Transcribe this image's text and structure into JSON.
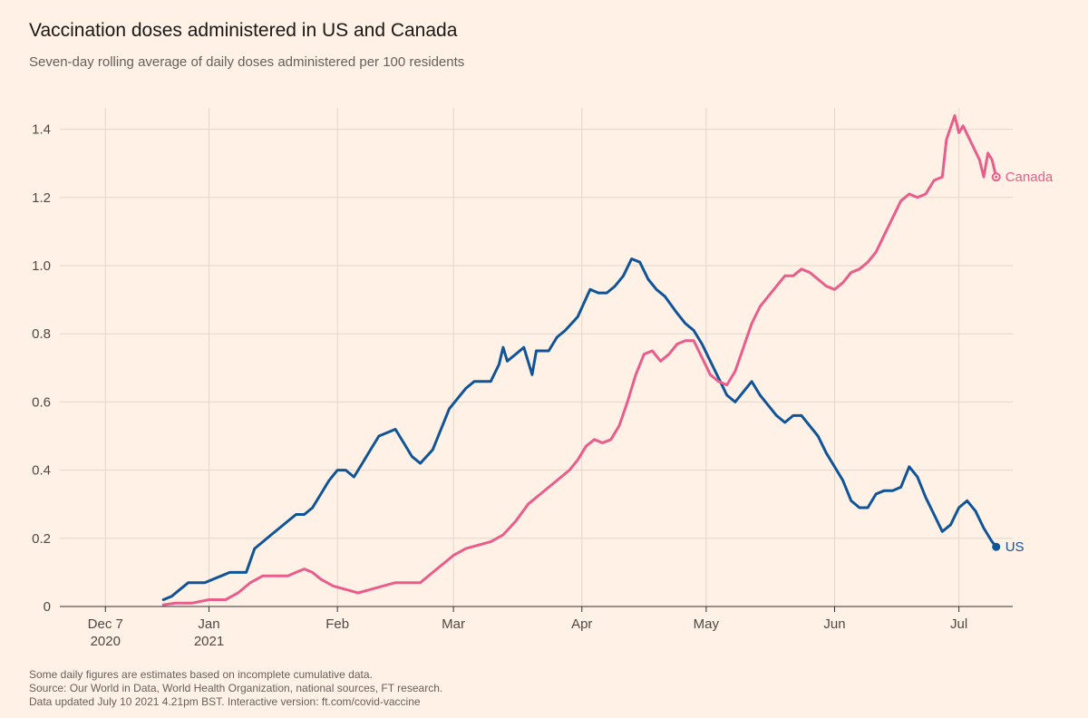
{
  "title": "Vaccination doses administered in US and Canada",
  "subtitle": "Seven-day rolling average of daily doses administered per 100 residents",
  "footnotes": [
    "Some daily figures are estimates based on incomplete cumulative data.",
    "Source: Our World in Data, World Health Organization, national sources, FT research.",
    "Data updated July 10 2021 4.21pm BST. Interactive version: ft.com/covid-vaccine"
  ],
  "colors": {
    "background": "#FFF1E5",
    "us": "#0F5499",
    "canada": "#E95D8C",
    "grid": "#E2D6CB",
    "axis": "#33302e"
  },
  "chart_data": {
    "type": "line",
    "title": "Vaccination doses administered in US and Canada",
    "subtitle": "Seven-day rolling average of daily doses administered per 100 residents",
    "xlabel": "",
    "ylabel": "",
    "x_axis": {
      "type": "date",
      "range": [
        "2020-11-26",
        "2021-07-14"
      ],
      "ticks": [
        {
          "date": "2020-12-07",
          "label": "Dec 7",
          "sublabel": "2020"
        },
        {
          "date": "2021-01-01",
          "label": "Jan",
          "sublabel": "2021"
        },
        {
          "date": "2021-02-01",
          "label": "Feb",
          "sublabel": ""
        },
        {
          "date": "2021-03-01",
          "label": "Mar",
          "sublabel": ""
        },
        {
          "date": "2021-04-01",
          "label": "Apr",
          "sublabel": ""
        },
        {
          "date": "2021-05-01",
          "label": "May",
          "sublabel": ""
        },
        {
          "date": "2021-06-01",
          "label": "Jun",
          "sublabel": ""
        },
        {
          "date": "2021-07-01",
          "label": "Jul",
          "sublabel": ""
        }
      ]
    },
    "y_axis": {
      "range": [
        0,
        1.5
      ],
      "ticks": [
        {
          "value": 0,
          "label": "0"
        },
        {
          "value": 0.2,
          "label": "0.2"
        },
        {
          "value": 0.4,
          "label": "0.4"
        },
        {
          "value": 0.6,
          "label": "0.6"
        },
        {
          "value": 0.8,
          "label": "0.8"
        },
        {
          "value": 1.0,
          "label": "1.0"
        },
        {
          "value": 1.2,
          "label": "1.2"
        },
        {
          "value": 1.4,
          "label": "1.4"
        }
      ]
    },
    "grid": true,
    "legend": "direct labels at line ends",
    "series": [
      {
        "name": "US",
        "color": "#0F5499",
        "points": [
          [
            "2020-12-21",
            0.02
          ],
          [
            "2020-12-23",
            0.03
          ],
          [
            "2020-12-25",
            0.05
          ],
          [
            "2020-12-27",
            0.07
          ],
          [
            "2020-12-29",
            0.07
          ],
          [
            "2020-12-31",
            0.07
          ],
          [
            "2021-01-02",
            0.08
          ],
          [
            "2021-01-04",
            0.09
          ],
          [
            "2021-01-06",
            0.1
          ],
          [
            "2021-01-08",
            0.1
          ],
          [
            "2021-01-10",
            0.1
          ],
          [
            "2021-01-12",
            0.17
          ],
          [
            "2021-01-14",
            0.19
          ],
          [
            "2021-01-16",
            0.21
          ],
          [
            "2021-01-18",
            0.23
          ],
          [
            "2021-01-20",
            0.25
          ],
          [
            "2021-01-22",
            0.27
          ],
          [
            "2021-01-24",
            0.27
          ],
          [
            "2021-01-26",
            0.29
          ],
          [
            "2021-01-28",
            0.33
          ],
          [
            "2021-01-30",
            0.37
          ],
          [
            "2021-02-01",
            0.4
          ],
          [
            "2021-02-03",
            0.4
          ],
          [
            "2021-02-05",
            0.38
          ],
          [
            "2021-02-07",
            0.42
          ],
          [
            "2021-02-09",
            0.46
          ],
          [
            "2021-02-11",
            0.5
          ],
          [
            "2021-02-13",
            0.51
          ],
          [
            "2021-02-15",
            0.52
          ],
          [
            "2021-02-17",
            0.48
          ],
          [
            "2021-02-19",
            0.44
          ],
          [
            "2021-02-21",
            0.42
          ],
          [
            "2021-02-24",
            0.46
          ],
          [
            "2021-02-26",
            0.52
          ],
          [
            "2021-02-28",
            0.58
          ],
          [
            "2021-03-02",
            0.61
          ],
          [
            "2021-03-04",
            0.64
          ],
          [
            "2021-03-06",
            0.66
          ],
          [
            "2021-03-08",
            0.66
          ],
          [
            "2021-03-10",
            0.66
          ],
          [
            "2021-03-12",
            0.71
          ],
          [
            "2021-03-13",
            0.76
          ],
          [
            "2021-03-14",
            0.72
          ],
          [
            "2021-03-16",
            0.74
          ],
          [
            "2021-03-18",
            0.76
          ],
          [
            "2021-03-20",
            0.68
          ],
          [
            "2021-03-21",
            0.75
          ],
          [
            "2021-03-24",
            0.75
          ],
          [
            "2021-03-26",
            0.79
          ],
          [
            "2021-03-28",
            0.81
          ],
          [
            "2021-03-31",
            0.85
          ],
          [
            "2021-04-03",
            0.93
          ],
          [
            "2021-04-05",
            0.92
          ],
          [
            "2021-04-07",
            0.92
          ],
          [
            "2021-04-09",
            0.94
          ],
          [
            "2021-04-11",
            0.97
          ],
          [
            "2021-04-13",
            1.02
          ],
          [
            "2021-04-15",
            1.01
          ],
          [
            "2021-04-17",
            0.96
          ],
          [
            "2021-04-19",
            0.93
          ],
          [
            "2021-04-21",
            0.91
          ],
          [
            "2021-04-24",
            0.86
          ],
          [
            "2021-04-26",
            0.83
          ],
          [
            "2021-04-28",
            0.81
          ],
          [
            "2021-04-30",
            0.77
          ],
          [
            "2021-05-02",
            0.72
          ],
          [
            "2021-05-04",
            0.67
          ],
          [
            "2021-05-06",
            0.62
          ],
          [
            "2021-05-08",
            0.6
          ],
          [
            "2021-05-10",
            0.63
          ],
          [
            "2021-05-12",
            0.66
          ],
          [
            "2021-05-14",
            0.62
          ],
          [
            "2021-05-16",
            0.59
          ],
          [
            "2021-05-18",
            0.56
          ],
          [
            "2021-05-20",
            0.54
          ],
          [
            "2021-05-22",
            0.56
          ],
          [
            "2021-05-24",
            0.56
          ],
          [
            "2021-05-26",
            0.53
          ],
          [
            "2021-05-28",
            0.5
          ],
          [
            "2021-05-30",
            0.45
          ],
          [
            "2021-06-01",
            0.41
          ],
          [
            "2021-06-03",
            0.37
          ],
          [
            "2021-06-05",
            0.31
          ],
          [
            "2021-06-07",
            0.29
          ],
          [
            "2021-06-09",
            0.29
          ],
          [
            "2021-06-11",
            0.33
          ],
          [
            "2021-06-13",
            0.34
          ],
          [
            "2021-06-15",
            0.34
          ],
          [
            "2021-06-17",
            0.35
          ],
          [
            "2021-06-19",
            0.41
          ],
          [
            "2021-06-21",
            0.38
          ],
          [
            "2021-06-23",
            0.32
          ],
          [
            "2021-06-25",
            0.27
          ],
          [
            "2021-06-27",
            0.22
          ],
          [
            "2021-06-29",
            0.24
          ],
          [
            "2021-07-01",
            0.29
          ],
          [
            "2021-07-03",
            0.31
          ],
          [
            "2021-07-05",
            0.28
          ],
          [
            "2021-07-07",
            0.23
          ],
          [
            "2021-07-09",
            0.19
          ],
          [
            "2021-07-10",
            0.175
          ]
        ]
      },
      {
        "name": "Canada",
        "color": "#E95D8C",
        "points": [
          [
            "2020-12-21",
            0.005
          ],
          [
            "2020-12-24",
            0.01
          ],
          [
            "2020-12-28",
            0.01
          ],
          [
            "2021-01-01",
            0.02
          ],
          [
            "2021-01-05",
            0.02
          ],
          [
            "2021-01-08",
            0.04
          ],
          [
            "2021-01-11",
            0.07
          ],
          [
            "2021-01-14",
            0.09
          ],
          [
            "2021-01-17",
            0.09
          ],
          [
            "2021-01-20",
            0.09
          ],
          [
            "2021-01-22",
            0.1
          ],
          [
            "2021-01-24",
            0.11
          ],
          [
            "2021-01-26",
            0.1
          ],
          [
            "2021-01-28",
            0.08
          ],
          [
            "2021-01-31",
            0.06
          ],
          [
            "2021-02-03",
            0.05
          ],
          [
            "2021-02-06",
            0.04
          ],
          [
            "2021-02-09",
            0.05
          ],
          [
            "2021-02-12",
            0.06
          ],
          [
            "2021-02-15",
            0.07
          ],
          [
            "2021-02-18",
            0.07
          ],
          [
            "2021-02-21",
            0.07
          ],
          [
            "2021-02-24",
            0.1
          ],
          [
            "2021-02-27",
            0.13
          ],
          [
            "2021-03-01",
            0.15
          ],
          [
            "2021-03-04",
            0.17
          ],
          [
            "2021-03-07",
            0.18
          ],
          [
            "2021-03-10",
            0.19
          ],
          [
            "2021-03-13",
            0.21
          ],
          [
            "2021-03-16",
            0.25
          ],
          [
            "2021-03-19",
            0.3
          ],
          [
            "2021-03-22",
            0.33
          ],
          [
            "2021-03-25",
            0.36
          ],
          [
            "2021-03-27",
            0.38
          ],
          [
            "2021-03-29",
            0.4
          ],
          [
            "2021-03-31",
            0.43
          ],
          [
            "2021-04-02",
            0.47
          ],
          [
            "2021-04-04",
            0.49
          ],
          [
            "2021-04-06",
            0.48
          ],
          [
            "2021-04-08",
            0.49
          ],
          [
            "2021-04-10",
            0.53
          ],
          [
            "2021-04-12",
            0.6
          ],
          [
            "2021-04-14",
            0.68
          ],
          [
            "2021-04-16",
            0.74
          ],
          [
            "2021-04-18",
            0.75
          ],
          [
            "2021-04-20",
            0.72
          ],
          [
            "2021-04-22",
            0.74
          ],
          [
            "2021-04-24",
            0.77
          ],
          [
            "2021-04-26",
            0.78
          ],
          [
            "2021-04-28",
            0.78
          ],
          [
            "2021-04-30",
            0.73
          ],
          [
            "2021-05-02",
            0.68
          ],
          [
            "2021-05-04",
            0.66
          ],
          [
            "2021-05-06",
            0.65
          ],
          [
            "2021-05-08",
            0.69
          ],
          [
            "2021-05-10",
            0.76
          ],
          [
            "2021-05-12",
            0.83
          ],
          [
            "2021-05-14",
            0.88
          ],
          [
            "2021-05-16",
            0.91
          ],
          [
            "2021-05-18",
            0.94
          ],
          [
            "2021-05-20",
            0.97
          ],
          [
            "2021-05-22",
            0.97
          ],
          [
            "2021-05-24",
            0.99
          ],
          [
            "2021-05-26",
            0.98
          ],
          [
            "2021-05-28",
            0.96
          ],
          [
            "2021-05-30",
            0.94
          ],
          [
            "2021-06-01",
            0.93
          ],
          [
            "2021-06-03",
            0.95
          ],
          [
            "2021-06-05",
            0.98
          ],
          [
            "2021-06-07",
            0.99
          ],
          [
            "2021-06-09",
            1.01
          ],
          [
            "2021-06-11",
            1.04
          ],
          [
            "2021-06-13",
            1.09
          ],
          [
            "2021-06-15",
            1.14
          ],
          [
            "2021-06-17",
            1.19
          ],
          [
            "2021-06-19",
            1.21
          ],
          [
            "2021-06-21",
            1.2
          ],
          [
            "2021-06-23",
            1.21
          ],
          [
            "2021-06-25",
            1.25
          ],
          [
            "2021-06-27",
            1.26
          ],
          [
            "2021-06-28",
            1.37
          ],
          [
            "2021-06-30",
            1.44
          ],
          [
            "2021-07-01",
            1.39
          ],
          [
            "2021-07-02",
            1.41
          ],
          [
            "2021-07-04",
            1.36
          ],
          [
            "2021-07-06",
            1.31
          ],
          [
            "2021-07-07",
            1.26
          ],
          [
            "2021-07-08",
            1.33
          ],
          [
            "2021-07-09",
            1.31
          ],
          [
            "2021-07-10",
            1.26
          ]
        ]
      }
    ]
  }
}
